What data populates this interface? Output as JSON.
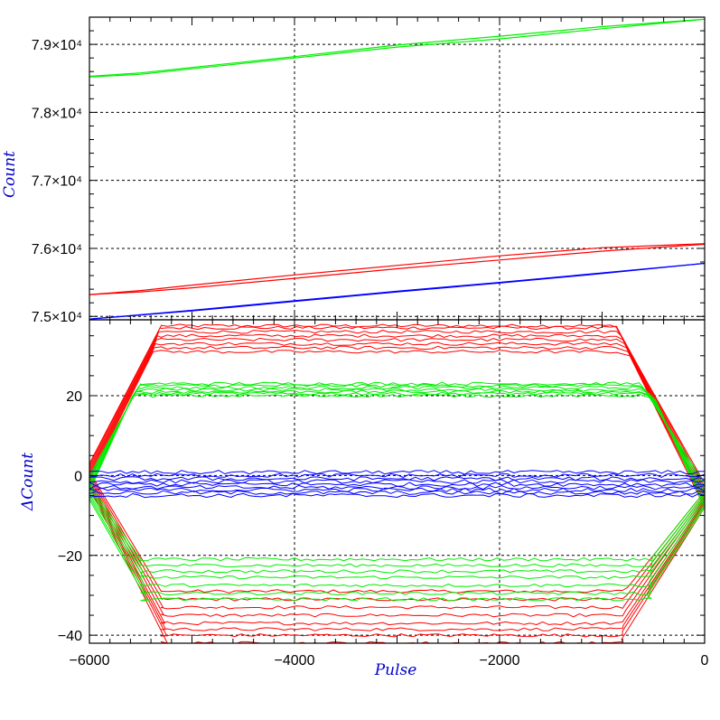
{
  "chart_data": [
    {
      "type": "line",
      "panel": "top",
      "xlabel": "",
      "ylabel": "Count",
      "xlim": [
        -6000,
        0
      ],
      "ylim": [
        74950,
        79400
      ],
      "yticks": [
        {
          "value": 75000,
          "label": "7.5×10⁴"
        },
        {
          "value": 76000,
          "label": "7.6×10⁴"
        },
        {
          "value": 77000,
          "label": "7.7×10⁴"
        },
        {
          "value": 78000,
          "label": "7.8×10⁴"
        },
        {
          "value": 79000,
          "label": "7.9×10⁴"
        }
      ],
      "grid": true,
      "series": [
        {
          "color": "#00ee00",
          "x": [
            -6000,
            -5500,
            -5000,
            -4000,
            -3000,
            -2000,
            -1000,
            0
          ],
          "y": [
            78520,
            78560,
            78640,
            78800,
            78960,
            79080,
            79230,
            79370
          ],
          "y2": [
            78530,
            78580,
            78660,
            78820,
            78990,
            79120,
            79260,
            79370
          ]
        },
        {
          "color": "#ff0000",
          "x": [
            -6000,
            -5500,
            -5000,
            -4000,
            -3000,
            -2000,
            -1000,
            0
          ],
          "y": [
            75320,
            75360,
            75420,
            75560,
            75700,
            75830,
            75960,
            76060
          ],
          "y2": [
            75320,
            75380,
            75460,
            75610,
            75750,
            75890,
            76010,
            76070
          ]
        },
        {
          "color": "#0000ff",
          "x": [
            -6000,
            -5000,
            -4000,
            -3000,
            -2000,
            -1000,
            0
          ],
          "y": [
            74960,
            75080,
            75220,
            75360,
            75490,
            75630,
            75780
          ],
          "y2": [
            74960,
            75090,
            75230,
            75370,
            75500,
            75640,
            75780
          ]
        }
      ]
    },
    {
      "type": "line",
      "panel": "bottom",
      "xlabel": "Pulse",
      "ylabel": "ΔCount",
      "xlim": [
        -6000,
        0
      ],
      "ylim": [
        -42,
        39
      ],
      "xticks": [
        {
          "value": -6000,
          "label": "−6000"
        },
        {
          "value": -4000,
          "label": "−4000"
        },
        {
          "value": -2000,
          "label": "−2000"
        },
        {
          "value": 0,
          "label": "0"
        }
      ],
      "yticks": [
        {
          "value": -40,
          "label": "−40"
        },
        {
          "value": -20,
          "label": "−20"
        },
        {
          "value": 0,
          "label": "0"
        },
        {
          "value": 20,
          "label": "20"
        }
      ],
      "grid": true,
      "series": [
        {
          "color": "#ff0000",
          "shape": "hysteresis",
          "upper": [
            37.5,
            37,
            36,
            35,
            34,
            33,
            32,
            31
          ],
          "lower": [
            -29,
            -31,
            -33,
            -35,
            -37,
            -38.5,
            -40,
            -42
          ],
          "xLeftTop": -5300,
          "xRightTop": -850,
          "xLeftBot": -5300,
          "xRightBot": -750,
          "edge": 3
        },
        {
          "color": "#00ee00",
          "shape": "hysteresis",
          "upper": [
            23,
            22.5,
            22,
            21.5,
            21,
            20.5,
            20
          ],
          "lower": [
            -21,
            -22.5,
            -24,
            -25.5,
            -27.5,
            -29.5,
            -31
          ],
          "xLeftTop": -5500,
          "xRightTop": -600,
          "xLeftBot": -5500,
          "xRightBot": -500,
          "edge": 0
        },
        {
          "color": "#0000ff",
          "shape": "band",
          "levels": [
            0.8,
            0,
            -0.8,
            -1.5,
            -2.2,
            -3,
            -3.6,
            -4.3,
            -5
          ]
        }
      ]
    }
  ]
}
